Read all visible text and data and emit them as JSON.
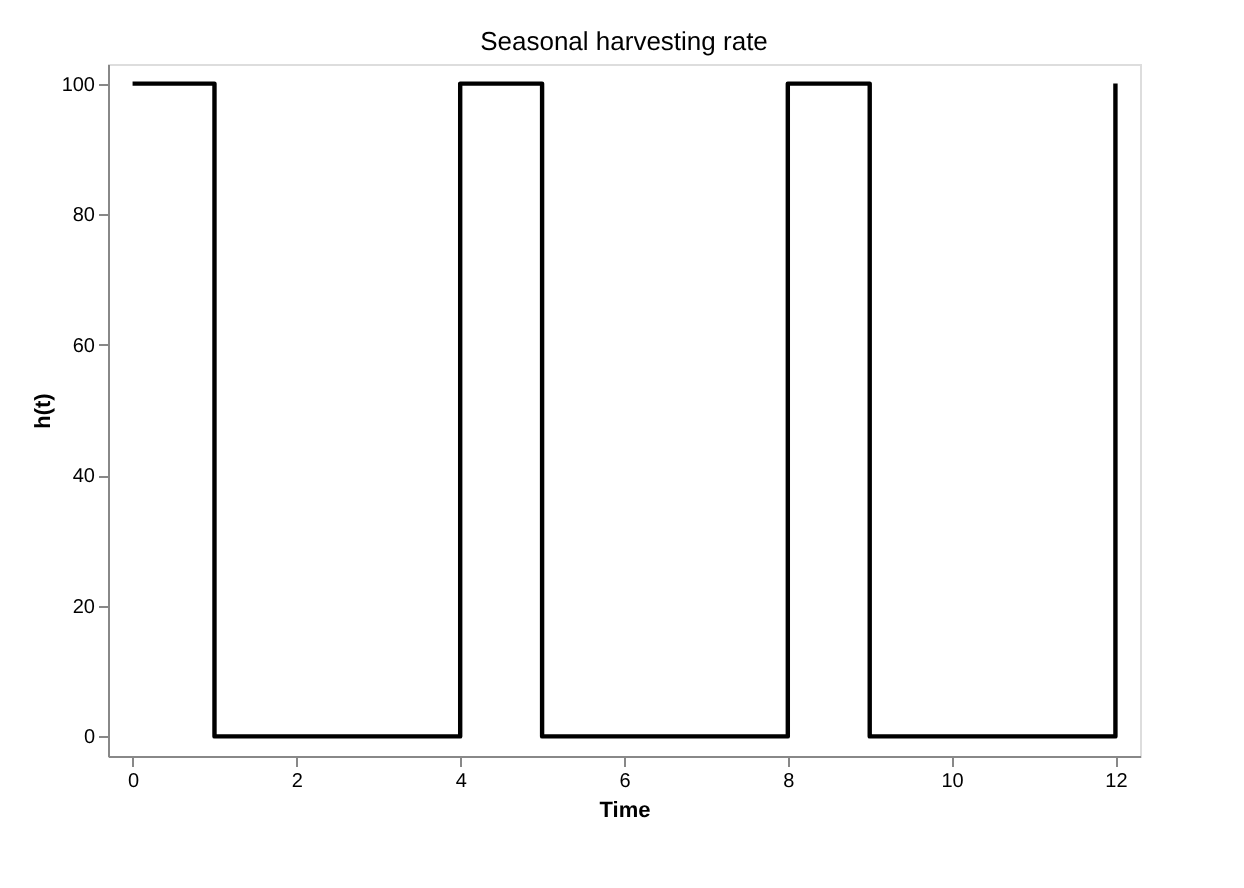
{
  "chart_data": {
    "type": "line",
    "title": "Seasonal harvesting rate",
    "xlabel": "Time",
    "ylabel": "h(t)",
    "x": [
      0,
      1,
      1,
      4,
      4,
      5,
      5,
      8,
      8,
      9,
      9,
      12,
      12
    ],
    "series": [
      {
        "color": "#000000",
        "values": [
          100,
          100,
          0,
          0,
          100,
          100,
          0,
          0,
          100,
          100,
          0,
          0,
          100
        ]
      }
    ],
    "xlim": [
      -0.3,
      12.3
    ],
    "ylim": [
      -3,
      103
    ],
    "xticks": [
      0,
      2,
      4,
      6,
      8,
      10,
      12
    ],
    "yticks": [
      0,
      20,
      40,
      60,
      80,
      100
    ],
    "grid": false,
    "legend": false,
    "marker": "none",
    "line_style": "solid"
  }
}
